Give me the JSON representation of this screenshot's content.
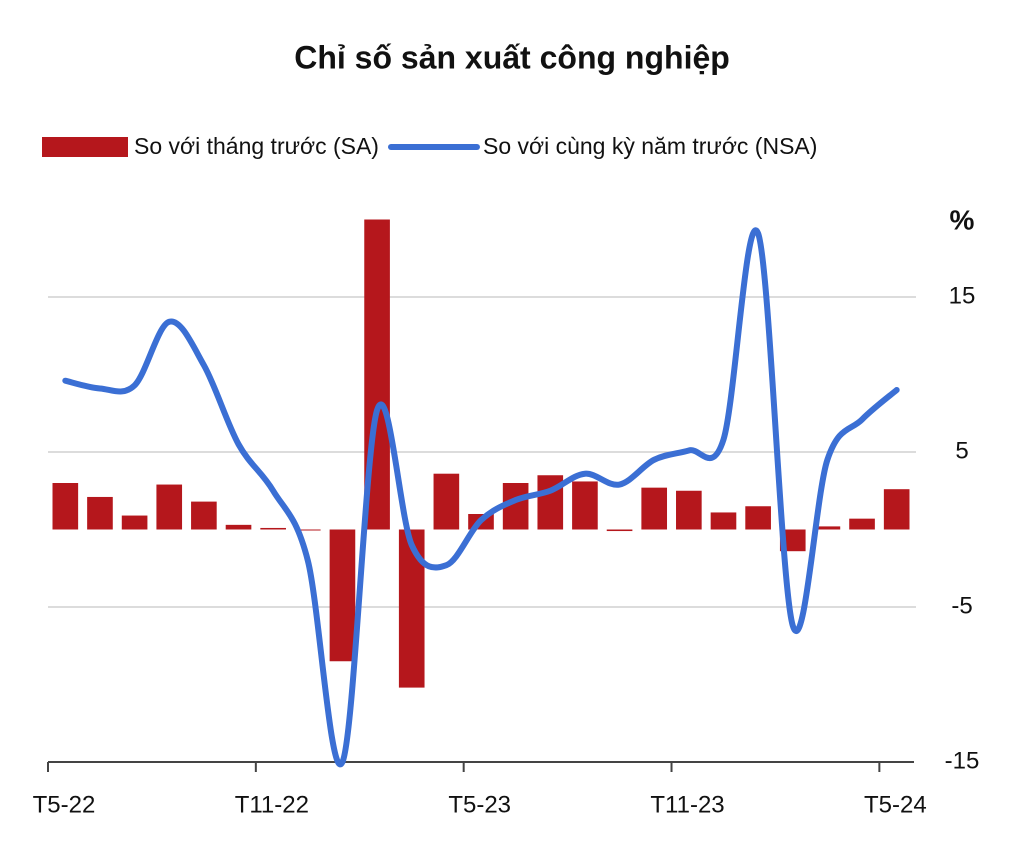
{
  "chart_data": {
    "type": "bar-line",
    "title": "Chỉ số sản xuất công nghiệp",
    "unit_label": "%",
    "categories": [
      "T5-22",
      null,
      null,
      null,
      null,
      null,
      "T11-22",
      null,
      null,
      null,
      null,
      null,
      "T5-23",
      null,
      null,
      null,
      null,
      null,
      "T11-23",
      null,
      null,
      null,
      null,
      null,
      "T5-24"
    ],
    "series": [
      {
        "name": "So với tháng trước (SA)",
        "kind": "bar",
        "color": "#b5171c",
        "values": [
          3.0,
          2.1,
          0.9,
          2.9,
          1.8,
          0.3,
          0.1,
          0.0,
          -8.5,
          20.0,
          -10.2,
          3.6,
          1.0,
          3.0,
          3.5,
          3.1,
          -0.1,
          2.7,
          2.5,
          1.1,
          1.5,
          -1.4,
          0.2,
          0.7,
          2.6
        ]
      },
      {
        "name": "So với cùng kỳ năm trước (NSA)",
        "kind": "line",
        "color": "#3b6fd4",
        "values": [
          9.6,
          9.1,
          9.3,
          13.4,
          10.6,
          5.5,
          2.5,
          -2.0,
          -15.0,
          7.7,
          -1.0,
          -2.3,
          0.6,
          1.9,
          2.5,
          3.6,
          2.9,
          4.5,
          5.1,
          5.8,
          19.1,
          -6.2,
          4.5,
          7.1,
          9.0
        ]
      }
    ],
    "ylim": [
      -15,
      20
    ],
    "yticks": [
      -15,
      -5,
      5,
      15
    ],
    "grid": true
  }
}
